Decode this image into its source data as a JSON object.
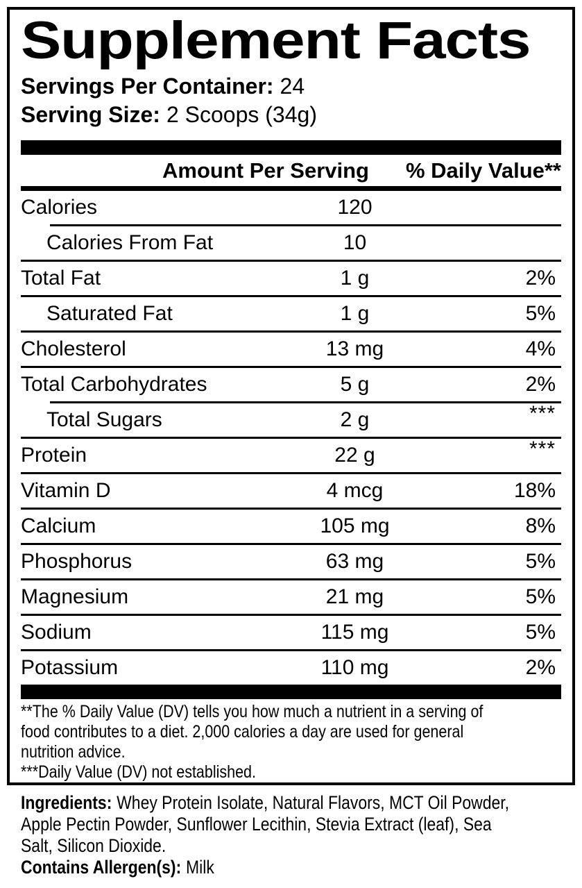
{
  "title": "Supplement Facts",
  "servings_per_container": {
    "label": "Servings Per Container:",
    "value": "24"
  },
  "serving_size": {
    "label": "Serving Size:",
    "value": "2 Scoops (34g)"
  },
  "table": {
    "amount_header": "Amount Per Serving",
    "dv_header": "% Daily Value**",
    "rows": [
      {
        "name": "Calories",
        "amount": "120",
        "dv": "",
        "indent": false
      },
      {
        "name": "Calories From Fat",
        "amount": "10",
        "dv": "",
        "indent": true
      },
      {
        "name": "Total Fat",
        "amount": "1 g",
        "dv": "2%",
        "indent": false
      },
      {
        "name": "Saturated Fat",
        "amount": "1 g",
        "dv": "5%",
        "indent": true
      },
      {
        "name": "Cholesterol",
        "amount": "13 mg",
        "dv": "4%",
        "indent": false
      },
      {
        "name": "Total Carbohydrates",
        "amount": "5 g",
        "dv": "2%",
        "indent": false
      },
      {
        "name": "Total Sugars",
        "amount": "2 g",
        "dv": "***",
        "indent": true
      },
      {
        "name": "Protein",
        "amount": "22 g",
        "dv": "***",
        "indent": false
      },
      {
        "name": "Vitamin D",
        "amount": "4 mcg",
        "dv": "18%",
        "indent": false
      },
      {
        "name": "Calcium",
        "amount": "105 mg",
        "dv": "8%",
        "indent": false
      },
      {
        "name": "Phosphorus",
        "amount": "63 mg",
        "dv": "5%",
        "indent": false
      },
      {
        "name": "Magnesium",
        "amount": "21 mg",
        "dv": "5%",
        "indent": false
      },
      {
        "name": "Sodium",
        "amount": "115 mg",
        "dv": "5%",
        "indent": false
      },
      {
        "name": "Potassium",
        "amount": "110 mg",
        "dv": "2%",
        "indent": false
      }
    ]
  },
  "footnotes": {
    "dv_note_lines": [
      "**The % Daily Value (DV) tells you how much a nutrient in a serving of",
      "food contributes to a diet. 2,000 calories a day are used for general",
      "nutrition advice."
    ],
    "not_established_note": "***Daily Value (DV) not established."
  },
  "ingredients": {
    "label": "Ingredients:",
    "lines": [
      "Whey Protein Isolate, Natural Flavors, MCT Oil Powder,",
      "Apple Pectin Powder, Sunflower Lecithin, Stevia Extract (leaf), Sea",
      "Salt, Silicon Dioxide."
    ],
    "allergen_label": "Contains Allergen(s):",
    "allergen_value": "Milk"
  },
  "colors": {
    "text": "#000000",
    "background": "#ffffff"
  }
}
